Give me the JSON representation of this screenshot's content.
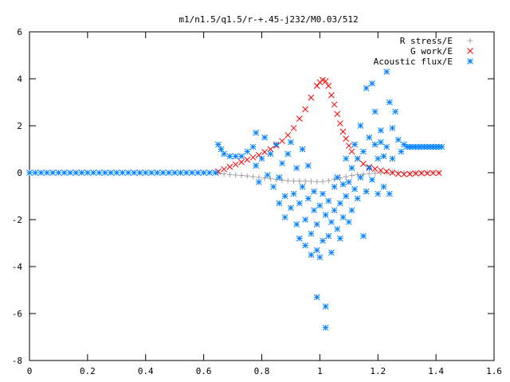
{
  "chart_data": {
    "type": "scatter",
    "title": "m1/n1.5/q1.5/r-+.45-j232/M0.03/512",
    "xlim": [
      0,
      1.6
    ],
    "ylim": [
      -8,
      6
    ],
    "x_ticks": [
      "0",
      "0.2",
      "0.4",
      "0.6",
      "0.8",
      "1",
      "1.2",
      "1.4",
      "1.6"
    ],
    "y_ticks": [
      "-8",
      "-6",
      "-4",
      "-2",
      "0",
      "2",
      "4",
      "6"
    ],
    "grid": false,
    "legend_position": "top-right",
    "series": [
      {
        "name": "R stress/E",
        "marker": "plus",
        "color": "#a0a0a0",
        "points": [
          [
            0.65,
            -0.02
          ],
          [
            0.67,
            -0.05
          ],
          [
            0.69,
            -0.08
          ],
          [
            0.71,
            -0.1
          ],
          [
            0.73,
            -0.12
          ],
          [
            0.75,
            -0.14
          ],
          [
            0.77,
            -0.17
          ],
          [
            0.79,
            -0.2
          ],
          [
            0.81,
            -0.23
          ],
          [
            0.83,
            -0.26
          ],
          [
            0.85,
            -0.29
          ],
          [
            0.87,
            -0.32
          ],
          [
            0.89,
            -0.34
          ],
          [
            0.91,
            -0.35
          ],
          [
            0.93,
            -0.36
          ],
          [
            0.95,
            -0.36
          ],
          [
            0.97,
            -0.37
          ],
          [
            0.99,
            -0.38
          ],
          [
            1.01,
            -0.38
          ],
          [
            1.03,
            -0.34
          ],
          [
            1.05,
            -0.28
          ],
          [
            1.07,
            -0.22
          ],
          [
            1.09,
            -0.17
          ],
          [
            1.11,
            -0.12
          ],
          [
            1.13,
            -0.08
          ],
          [
            1.15,
            -0.06
          ],
          [
            1.17,
            -0.04
          ],
          [
            1.19,
            -0.02
          ],
          [
            1.21,
            -0.01
          ],
          [
            1.23,
            0.0
          ],
          [
            1.25,
            0.02
          ],
          [
            1.27,
            0.02
          ],
          [
            1.29,
            0.0
          ],
          [
            1.31,
            -0.02
          ],
          [
            1.33,
            -0.01
          ],
          [
            1.35,
            0.0
          ],
          [
            1.37,
            0.01
          ],
          [
            1.39,
            0.01
          ],
          [
            1.41,
            0.0
          ]
        ]
      },
      {
        "name": "G work/E",
        "marker": "cross",
        "color": "#ff0000",
        "points": [
          [
            0.65,
            0.05
          ],
          [
            0.67,
            0.15
          ],
          [
            0.69,
            0.25
          ],
          [
            0.71,
            0.35
          ],
          [
            0.73,
            0.45
          ],
          [
            0.75,
            0.55
          ],
          [
            0.77,
            0.65
          ],
          [
            0.79,
            0.75
          ],
          [
            0.81,
            0.88
          ],
          [
            0.83,
            1.0
          ],
          [
            0.85,
            1.15
          ],
          [
            0.87,
            1.35
          ],
          [
            0.89,
            1.6
          ],
          [
            0.91,
            1.9
          ],
          [
            0.93,
            2.3
          ],
          [
            0.95,
            2.7
          ],
          [
            0.97,
            3.2
          ],
          [
            0.99,
            3.7
          ],
          [
            1.0,
            3.85
          ],
          [
            1.01,
            3.95
          ],
          [
            1.02,
            3.9
          ],
          [
            1.03,
            3.7
          ],
          [
            1.04,
            3.3
          ],
          [
            1.05,
            2.9
          ],
          [
            1.06,
            2.5
          ],
          [
            1.07,
            2.1
          ],
          [
            1.08,
            1.75
          ],
          [
            1.09,
            1.45
          ],
          [
            1.1,
            1.15
          ],
          [
            1.11,
            0.9
          ],
          [
            1.13,
            0.6
          ],
          [
            1.15,
            0.38
          ],
          [
            1.17,
            0.24
          ],
          [
            1.19,
            0.16
          ],
          [
            1.21,
            0.1
          ],
          [
            1.23,
            0.05
          ],
          [
            1.25,
            0.0
          ],
          [
            1.27,
            -0.05
          ],
          [
            1.29,
            -0.07
          ],
          [
            1.31,
            -0.05
          ],
          [
            1.33,
            -0.03
          ],
          [
            1.35,
            -0.02
          ],
          [
            1.37,
            -0.02
          ],
          [
            1.39,
            -0.01
          ],
          [
            1.41,
            -0.01
          ]
        ]
      },
      {
        "name": "Acoustic flux/E",
        "marker": "star",
        "color": "#0080ff",
        "points": [
          [
            0.0,
            0.0
          ],
          [
            0.02,
            0.0
          ],
          [
            0.04,
            0.0
          ],
          [
            0.06,
            0.0
          ],
          [
            0.08,
            0.0
          ],
          [
            0.1,
            0.0
          ],
          [
            0.12,
            0.0
          ],
          [
            0.14,
            0.0
          ],
          [
            0.16,
            0.0
          ],
          [
            0.18,
            0.0
          ],
          [
            0.2,
            0.0
          ],
          [
            0.22,
            0.0
          ],
          [
            0.24,
            0.0
          ],
          [
            0.26,
            0.0
          ],
          [
            0.28,
            0.0
          ],
          [
            0.3,
            0.0
          ],
          [
            0.32,
            0.0
          ],
          [
            0.34,
            0.0
          ],
          [
            0.36,
            0.0
          ],
          [
            0.38,
            0.0
          ],
          [
            0.4,
            0.0
          ],
          [
            0.42,
            0.0
          ],
          [
            0.44,
            0.0
          ],
          [
            0.46,
            0.0
          ],
          [
            0.48,
            0.0
          ],
          [
            0.5,
            0.0
          ],
          [
            0.52,
            0.0
          ],
          [
            0.54,
            0.0
          ],
          [
            0.56,
            0.0
          ],
          [
            0.58,
            0.0
          ],
          [
            0.6,
            0.0
          ],
          [
            0.62,
            0.0
          ],
          [
            0.64,
            0.0
          ],
          [
            0.65,
            1.2
          ],
          [
            0.66,
            1.0
          ],
          [
            0.67,
            0.8
          ],
          [
            0.69,
            0.7
          ],
          [
            0.71,
            0.7
          ],
          [
            0.73,
            0.7
          ],
          [
            0.75,
            0.9
          ],
          [
            0.77,
            1.1
          ],
          [
            0.78,
            1.7
          ],
          [
            0.78,
            0.3
          ],
          [
            0.79,
            -0.4
          ],
          [
            0.8,
            0.6
          ],
          [
            0.81,
            1.5
          ],
          [
            0.82,
            -0.1
          ],
          [
            0.83,
            0.8
          ],
          [
            0.84,
            -0.6
          ],
          [
            0.85,
            1.2
          ],
          [
            0.86,
            -0.2
          ],
          [
            0.86,
            -1.3
          ],
          [
            0.87,
            0.4
          ],
          [
            0.88,
            -1.0
          ],
          [
            0.88,
            -1.9
          ],
          [
            0.89,
            0.8
          ],
          [
            0.9,
            -1.5
          ],
          [
            0.9,
            1.3
          ],
          [
            0.91,
            -0.9
          ],
          [
            0.92,
            -2.2
          ],
          [
            0.92,
            0.2
          ],
          [
            0.93,
            -1.3
          ],
          [
            0.93,
            -2.8
          ],
          [
            0.94,
            -0.6
          ],
          [
            0.94,
            1.0
          ],
          [
            0.95,
            -2.0
          ],
          [
            0.95,
            -3.1
          ],
          [
            0.96,
            -1.1
          ],
          [
            0.96,
            0.3
          ],
          [
            0.97,
            -2.6
          ],
          [
            0.97,
            -3.5
          ],
          [
            0.98,
            -1.6
          ],
          [
            0.98,
            -0.8
          ],
          [
            0.99,
            -2.2
          ],
          [
            0.99,
            -3.3
          ],
          [
            0.99,
            -5.3
          ],
          [
            1.0,
            -1.4
          ],
          [
            1.0,
            -3.6
          ],
          [
            1.01,
            -0.9
          ],
          [
            1.01,
            -2.9
          ],
          [
            1.02,
            -1.8
          ],
          [
            1.02,
            -5.7
          ],
          [
            1.02,
            -6.6
          ],
          [
            1.03,
            -2.7
          ],
          [
            1.03,
            -1.2
          ],
          [
            1.04,
            -2.1
          ],
          [
            1.04,
            -3.4
          ],
          [
            1.05,
            -0.6
          ],
          [
            1.05,
            -1.6
          ],
          [
            1.06,
            -2.4
          ],
          [
            1.06,
            -0.2
          ],
          [
            1.07,
            -1.3
          ],
          [
            1.07,
            -2.8
          ],
          [
            1.08,
            -0.5
          ],
          [
            1.08,
            -1.9
          ],
          [
            1.09,
            0.6
          ],
          [
            1.09,
            -1.0
          ],
          [
            1.1,
            -2.1
          ],
          [
            1.1,
            -0.4
          ],
          [
            1.11,
            0.2
          ],
          [
            1.11,
            -1.6
          ],
          [
            1.12,
            1.2
          ],
          [
            1.12,
            -0.7
          ],
          [
            1.13,
            0.6
          ],
          [
            1.13,
            -1.1
          ],
          [
            1.14,
            2.0
          ],
          [
            1.14,
            -0.2
          ],
          [
            1.15,
            0.9
          ],
          [
            1.15,
            -2.7
          ],
          [
            1.16,
            3.6
          ],
          [
            1.16,
            -0.8
          ],
          [
            1.17,
            1.5
          ],
          [
            1.17,
            0.2
          ],
          [
            1.18,
            3.8
          ],
          [
            1.18,
            -0.3
          ],
          [
            1.19,
            1.2
          ],
          [
            1.19,
            2.6
          ],
          [
            1.2,
            0.6
          ],
          [
            1.2,
            -0.9
          ],
          [
            1.21,
            1.8
          ],
          [
            1.21,
            1.3
          ],
          [
            1.22,
            0.7
          ],
          [
            1.22,
            -0.6
          ],
          [
            1.23,
            4.3
          ],
          [
            1.23,
            1.1
          ],
          [
            1.24,
            3.0
          ],
          [
            1.24,
            -0.9
          ],
          [
            1.25,
            1.9
          ],
          [
            1.25,
            0.6
          ],
          [
            1.26,
            2.6
          ],
          [
            1.27,
            1.4
          ],
          [
            1.28,
            0.9
          ],
          [
            1.29,
            1.2
          ],
          [
            1.3,
            1.1
          ],
          [
            1.31,
            1.1
          ],
          [
            1.32,
            1.1
          ],
          [
            1.33,
            1.1
          ],
          [
            1.34,
            1.1
          ],
          [
            1.35,
            1.1
          ],
          [
            1.36,
            1.1
          ],
          [
            1.37,
            1.1
          ],
          [
            1.38,
            1.1
          ],
          [
            1.39,
            1.1
          ],
          [
            1.4,
            1.1
          ],
          [
            1.41,
            1.1
          ],
          [
            1.42,
            1.1
          ]
        ]
      }
    ]
  }
}
